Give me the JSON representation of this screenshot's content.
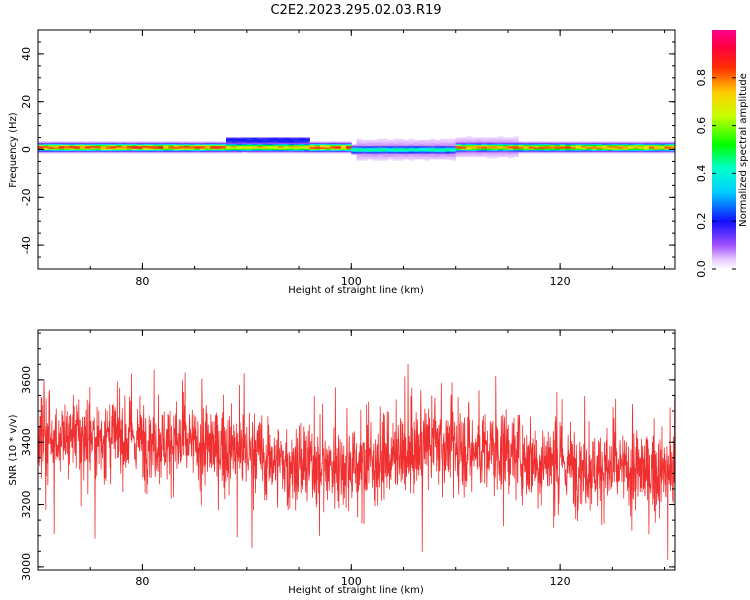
{
  "title": "C2E2.2023.295.02.03.R19",
  "chart_data": [
    {
      "type": "heatmap",
      "xlabel": "Height of straight line (km)",
      "ylabel": "Frequency (Hz)",
      "xlim": [
        70,
        131
      ],
      "ylim": [
        -50,
        50
      ],
      "xticks": [
        80,
        100,
        120
      ],
      "yticks": [
        -40,
        -20,
        0,
        20,
        40
      ],
      "colorbar": {
        "label": "Normalized spectral amplitude",
        "range": [
          0,
          1
        ],
        "ticks": [
          0.0,
          0.2,
          0.4,
          0.6,
          0.8
        ],
        "colormap": "rainbow (white-violet-blue-cyan-green-yellow-red-magenta)"
      },
      "ridge": {
        "description": "narrow band centred near 0 Hz, strongest near 0 to +2 Hz",
        "segments": [
          {
            "x_range": [
              70,
              88
            ],
            "center_hz": 1,
            "peak_amplitude": 0.85
          },
          {
            "x_range": [
              88,
              96
            ],
            "center_hz": 1,
            "peak_amplitude": 0.75,
            "upper_halo_hz": 4
          },
          {
            "x_range": [
              96,
              100
            ],
            "center_hz": 1,
            "peak_amplitude": 0.85
          },
          {
            "x_range": [
              100,
              110
            ],
            "center_hz": 0,
            "peak_amplitude": 0.45
          },
          {
            "x_range": [
              110,
              131
            ],
            "center_hz": 1,
            "peak_amplitude": 0.8
          }
        ]
      }
    },
    {
      "type": "line",
      "xlabel": "Height of straight line (km)",
      "ylabel": "SNR (10 * v/v)",
      "xlim": [
        70,
        131
      ],
      "ylim": [
        2990,
        3760
      ],
      "xticks": [
        80,
        100,
        120
      ],
      "yticks": [
        3000,
        3200,
        3400,
        3600
      ],
      "series": [
        {
          "color": "#f03030",
          "mean_profile": [
            {
              "x": 70,
              "y": 3420
            },
            {
              "x": 80,
              "y": 3410
            },
            {
              "x": 90,
              "y": 3370
            },
            {
              "x": 95,
              "y": 3320
            },
            {
              "x": 100,
              "y": 3330
            },
            {
              "x": 105,
              "y": 3350
            },
            {
              "x": 108,
              "y": 3400
            },
            {
              "x": 110,
              "y": 3380
            },
            {
              "x": 115,
              "y": 3370
            },
            {
              "x": 120,
              "y": 3330
            },
            {
              "x": 125,
              "y": 3310
            },
            {
              "x": 131,
              "y": 3300
            }
          ],
          "noise_amplitude": 120
        }
      ]
    }
  ],
  "colors": {
    "line": "#f03030",
    "axes": "#000000",
    "background": "#ffffff"
  }
}
